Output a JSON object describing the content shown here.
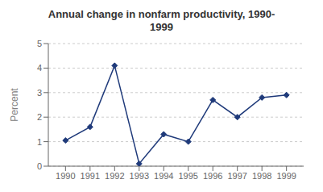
{
  "chart_data": {
    "type": "line",
    "title": "Annual change in nonfarm productivity, 1990-\n1999",
    "ylabel": "Percent",
    "x": [
      1990,
      1991,
      1992,
      1993,
      1994,
      1995,
      1996,
      1997,
      1998,
      1999
    ],
    "values": [
      1.05,
      1.6,
      4.1,
      0.1,
      1.3,
      1.0,
      2.7,
      2.0,
      2.8,
      2.9
    ],
    "color": "#1F3A7A",
    "marker": "diamond",
    "xlim": [
      1989.3,
      1999.7
    ],
    "ylim": [
      0,
      5
    ],
    "xticks": [
      1990,
      1991,
      1992,
      1993,
      1994,
      1995,
      1996,
      1997,
      1998,
      1999
    ],
    "yticks": [
      0,
      1,
      2,
      3,
      4,
      5
    ],
    "grid": "y"
  }
}
